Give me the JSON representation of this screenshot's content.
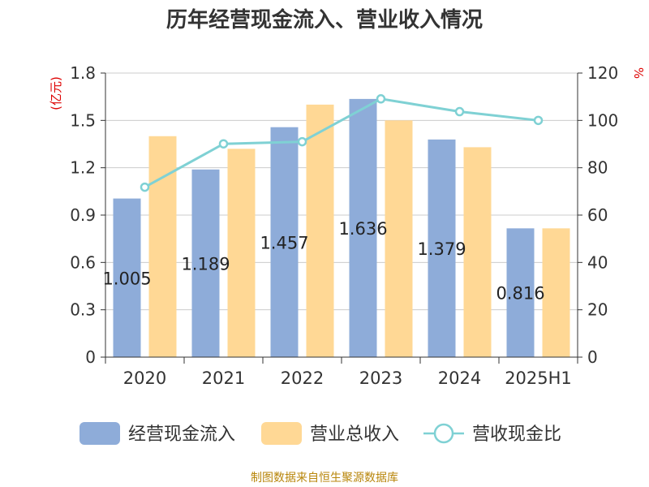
{
  "title": "历年经营现金流入、营业收入情况",
  "source": "制图数据来自恒生聚源数据库",
  "colors": {
    "cash_inflow": "#8eacd9",
    "revenue": "#ffd895",
    "ratio": "#7fd1d4",
    "axis": "#333333",
    "unit": "#dd0000",
    "grid": "#cccccc"
  },
  "chart_data": {
    "type": "bar",
    "categories": [
      "2020",
      "2021",
      "2022",
      "2023",
      "2024",
      "2025H1"
    ],
    "y_left": {
      "unit": "亿元",
      "ylim": [
        0,
        1.8
      ],
      "ticks": [
        "0",
        "0.3",
        "0.6",
        "0.9",
        "1.2",
        "1.5",
        "1.8"
      ]
    },
    "y_right": {
      "unit": "%",
      "ylim": [
        0,
        120
      ],
      "ticks": [
        "0",
        "20",
        "40",
        "60",
        "80",
        "100",
        "120"
      ]
    },
    "series": [
      {
        "name": "经营现金流入",
        "type": "bar",
        "axis": "left",
        "values": [
          1.005,
          1.189,
          1.457,
          1.636,
          1.379,
          0.816
        ],
        "labels": [
          "1.005",
          "1.189",
          "1.457",
          "1.636",
          "1.379",
          "0.816"
        ]
      },
      {
        "name": "营业总收入",
        "type": "bar",
        "axis": "left",
        "values": [
          1.4,
          1.32,
          1.6,
          1.5,
          1.33,
          0.816
        ]
      },
      {
        "name": "营收现金比",
        "type": "line",
        "axis": "right",
        "values": [
          71.8,
          90.1,
          91.0,
          109.1,
          103.7,
          100.0
        ]
      }
    ],
    "grid": true,
    "legend": "bottom"
  }
}
